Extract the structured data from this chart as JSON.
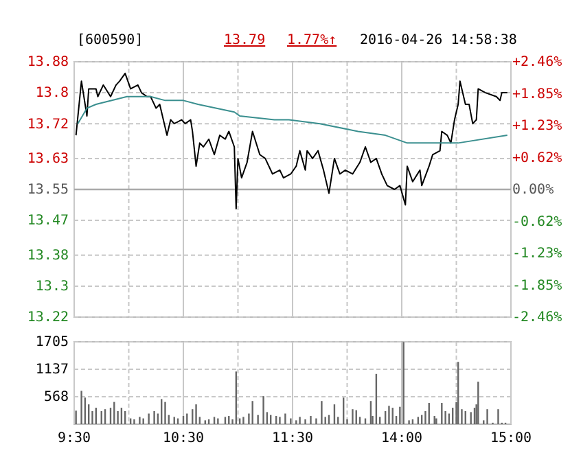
{
  "chart_data": [
    {
      "type": "line",
      "title": "[600590]",
      "annotations": [
        "13.79",
        "1.77%↑",
        "2016-04-26 14:58:38"
      ],
      "categories": [
        null,
        null,
        null,
        null,
        null,
        null,
        null,
        null,
        null,
        null,
        null,
        null,
        null,
        null,
        null,
        null,
        null,
        null,
        null,
        null,
        null,
        null,
        null,
        null,
        null,
        null,
        null,
        null,
        null,
        null,
        null,
        null,
        null,
        null,
        null,
        null,
        null,
        null,
        null,
        null,
        null,
        null,
        null,
        null,
        null,
        null,
        null,
        null,
        null,
        null,
        null,
        null,
        null,
        null,
        null,
        null,
        null,
        null,
        null,
        null,
        null,
        null,
        null,
        null,
        null,
        null,
        null,
        null,
        null,
        null,
        null,
        null,
        null,
        null,
        null,
        null,
        null,
        null,
        null,
        null,
        null,
        null,
        null,
        null,
        null,
        null,
        null,
        null,
        null,
        null,
        null,
        null,
        null,
        null,
        null,
        null,
        null,
        null,
        null,
        null,
        null,
        null,
        null,
        null,
        null,
        null,
        null,
        null,
        null,
        null,
        null,
        null,
        null,
        null,
        null,
        null,
        null,
        null,
        null,
        null,
        null,
        null,
        null,
        null,
        null,
        null,
        null,
        null,
        null,
        null,
        null,
        null,
        null,
        null,
        null,
        null,
        null,
        null,
        null,
        null,
        null,
        null,
        null,
        null,
        null,
        null,
        null,
        null,
        null,
        null,
        null,
        null,
        null,
        null,
        null,
        null,
        null,
        null,
        null,
        null,
        null,
        null,
        null,
        null,
        null,
        null,
        null,
        null,
        null,
        null,
        null,
        null,
        null,
        null,
        null,
        null,
        null,
        null,
        null,
        null,
        null,
        null,
        null,
        null,
        null,
        null,
        null,
        null,
        null,
        null,
        null,
        null,
        null,
        null,
        null,
        null,
        null,
        null,
        null,
        null,
        null,
        null,
        null,
        null,
        null,
        null,
        null,
        null,
        null,
        null,
        null,
        null,
        null,
        null,
        null,
        null,
        null,
        null,
        null,
        null,
        null,
        null,
        null,
        null,
        null,
        null,
        null,
        null,
        null,
        null,
        null,
        null,
        null,
        null,
        null,
        null,
        null,
        null,
        null,
        null,
        null
      ],
      "ylim": [
        13.22,
        13.88
      ],
      "yticks": [
        13.22,
        13.3,
        13.38,
        13.47,
        13.55,
        13.63,
        13.72,
        13.8,
        13.88
      ],
      "y2lim": [
        -2.46,
        2.46
      ],
      "y2ticks": [
        {
          "value": -2.46,
          "label": "-2.46%"
        },
        {
          "value": -1.85,
          "label": "-1.85%"
        },
        {
          "value": -1.23,
          "label": "-1.23%"
        },
        {
          "value": -0.62,
          "label": "-0.62%"
        },
        {
          "value": 0,
          "label": "0.00%"
        },
        {
          "value": 0.62,
          "label": "+0.62%"
        },
        {
          "value": 1.23,
          "label": "+1.23%"
        },
        {
          "value": 1.85,
          "label": "+1.85%"
        },
        {
          "value": 2.46,
          "label": "+2.46%"
        }
      ],
      "tick_labels": "y",
      "grid": true,
      "ref_lines": [
        {
          "axis": "y",
          "value": 13.55
        }
      ],
      "series": [
        {
          "color": "#000000",
          "values": [
            null,
            13.69,
            null,
            null,
            13.83,
            null,
            null,
            13.74,
            13.81,
            null,
            null,
            null,
            13.81,
            13.79,
            null,
            null,
            13.82,
            null,
            null,
            null,
            13.79,
            null,
            null,
            13.82,
            null,
            13.83,
            null,
            null,
            13.85,
            null,
            null,
            13.81,
            null,
            null,
            null,
            13.82,
            null,
            13.8,
            null,
            null,
            13.79,
            null,
            13.79,
            null,
            null,
            13.76,
            null,
            13.77,
            null,
            13.73,
            null,
            13.69,
            null,
            13.73,
            null,
            13.72,
            null,
            null,
            null,
            13.73,
            null,
            13.72,
            null,
            null,
            13.73,
            13.7,
            null,
            13.61,
            null,
            13.67,
            null,
            13.66,
            null,
            null,
            13.68,
            null,
            null,
            13.64,
            null,
            null,
            13.69,
            null,
            null,
            13.68,
            null,
            13.7,
            null,
            null,
            13.66,
            13.5,
            13.63,
            null,
            13.58,
            null,
            null,
            13.62,
            null,
            null,
            13.7,
            null,
            null,
            null,
            13.64,
            null,
            null,
            13.63,
            null,
            null,
            null,
            13.59,
            null,
            null,
            null,
            13.6,
            null,
            13.58,
            null,
            null,
            null,
            13.59,
            null,
            null,
            13.61,
            null,
            13.65,
            null,
            null,
            13.6,
            13.65,
            null,
            null,
            13.63,
            null,
            null,
            13.65,
            null,
            null,
            13.6,
            null,
            null,
            13.54,
            null,
            null,
            13.63,
            null,
            null,
            13.59,
            null,
            null,
            13.6,
            null,
            null,
            null,
            13.59,
            null,
            null,
            null,
            13.62,
            null,
            null,
            13.66,
            null,
            null,
            13.62,
            null,
            null,
            13.63,
            null,
            null,
            13.59,
            null,
            null,
            13.56,
            null,
            null,
            null,
            13.55,
            null,
            null,
            13.56,
            null,
            null,
            13.51,
            13.61,
            null,
            null,
            13.57,
            null,
            null,
            null,
            13.6,
            13.56,
            null,
            null,
            null,
            13.61,
            null,
            13.64,
            null,
            null,
            null,
            13.65,
            13.7,
            null,
            null,
            13.69,
            null,
            13.67,
            null,
            13.73,
            null,
            13.77,
            13.83,
            null,
            null,
            13.77,
            null,
            13.77,
            null,
            13.72,
            null,
            13.73,
            13.81,
            null,
            null,
            null,
            13.8,
            null,
            null,
            null,
            null,
            null,
            13.79,
            null,
            13.78,
            13.8,
            null,
            null,
            13.8,
            null,
            null
          ]
        },
        {
          "color": "#3a8f8f",
          "values": [
            null,
            null,
            13.72,
            null,
            null,
            null,
            null,
            13.76,
            null,
            null,
            null,
            null,
            13.77,
            null,
            null,
            null,
            null,
            null,
            null,
            null,
            null,
            null,
            null,
            null,
            null,
            null,
            null,
            null,
            null,
            13.79,
            null,
            null,
            null,
            null,
            null,
            null,
            null,
            null,
            null,
            null,
            null,
            null,
            13.79,
            null,
            null,
            null,
            null,
            null,
            null,
            null,
            13.78,
            null,
            null,
            null,
            null,
            null,
            null,
            null,
            null,
            null,
            13.78,
            null,
            null,
            null,
            null,
            null,
            null,
            null,
            13.77,
            null,
            null,
            null,
            null,
            null,
            null,
            null,
            null,
            null,
            null,
            null,
            null,
            null,
            null,
            null,
            null,
            null,
            null,
            null,
            13.75,
            null,
            null,
            13.74,
            null,
            null,
            null,
            null,
            null,
            null,
            null,
            null,
            null,
            null,
            null,
            null,
            null,
            null,
            null,
            null,
            null,
            null,
            13.73,
            null,
            null,
            null,
            null,
            null,
            null,
            null,
            13.73,
            null,
            null,
            null,
            null,
            null,
            null,
            null,
            null,
            null,
            null,
            null,
            null,
            null,
            null,
            null,
            null,
            13.72,
            null,
            null,
            null,
            null,
            null,
            null,
            null,
            null,
            null,
            null,
            null,
            null,
            null,
            null,
            null,
            null,
            null,
            null,
            null,
            null,
            13.7,
            null,
            null,
            null,
            null,
            null,
            null,
            null,
            null,
            null,
            null,
            null,
            null,
            null,
            null,
            13.69,
            null,
            null,
            null,
            null,
            null,
            null,
            null,
            null,
            null,
            null,
            null,
            13.67,
            null,
            null,
            null,
            null,
            null,
            null,
            null,
            null,
            null,
            null,
            null,
            null,
            13.67,
            null,
            null,
            null,
            null,
            null,
            null,
            null,
            null,
            null,
            null,
            null,
            null,
            null,
            null,
            13.67,
            null,
            null,
            null,
            null,
            null,
            null,
            null,
            null,
            null,
            null,
            null,
            null,
            null,
            null,
            null,
            null,
            null,
            null,
            null,
            null,
            null,
            null,
            null,
            null,
            null,
            null,
            13.69,
            null,
            null
          ]
        }
      ]
    },
    {
      "type": "bar",
      "color": "#666666",
      "categories": [
        "9:30",
        null,
        null,
        null,
        null,
        null,
        null,
        null,
        null,
        null,
        null,
        null,
        null,
        null,
        null,
        null,
        null,
        null,
        null,
        null,
        null,
        null,
        null,
        null,
        null,
        null,
        null,
        null,
        null,
        null,
        null,
        null,
        null,
        null,
        null,
        null,
        null,
        null,
        null,
        null,
        null,
        null,
        null,
        null,
        null,
        null,
        null,
        null,
        null,
        null,
        null,
        null,
        null,
        null,
        null,
        null,
        null,
        null,
        null,
        null,
        "10:30",
        null,
        null,
        null,
        null,
        null,
        null,
        null,
        null,
        null,
        null,
        null,
        null,
        null,
        null,
        null,
        null,
        null,
        null,
        null,
        null,
        null,
        null,
        null,
        null,
        null,
        null,
        null,
        null,
        null,
        null,
        null,
        null,
        null,
        null,
        null,
        null,
        null,
        null,
        null,
        null,
        null,
        null,
        null,
        null,
        null,
        null,
        null,
        null,
        null,
        null,
        null,
        null,
        null,
        null,
        null,
        null,
        null,
        null,
        null,
        "11:30",
        null,
        null,
        null,
        null,
        null,
        null,
        null,
        null,
        null,
        null,
        null,
        null,
        null,
        null,
        null,
        null,
        null,
        null,
        null,
        null,
        null,
        null,
        null,
        null,
        null,
        null,
        null,
        null,
        null,
        null,
        null,
        null,
        null,
        null,
        null,
        null,
        null,
        null,
        null,
        null,
        null,
        null,
        null,
        null,
        null,
        null,
        null,
        null,
        null,
        null,
        null,
        null,
        null,
        null,
        null,
        null,
        null,
        null,
        null,
        "14:00",
        null,
        null,
        null,
        null,
        null,
        null,
        null,
        null,
        null,
        null,
        null,
        null,
        null,
        null,
        null,
        null,
        null,
        null,
        null,
        null,
        null,
        null,
        null,
        null,
        null,
        null,
        null,
        null,
        null,
        null,
        null,
        null,
        null,
        null,
        null,
        null,
        null,
        null,
        null,
        null,
        null,
        null,
        null,
        null,
        null,
        null,
        null,
        null,
        null,
        null,
        null,
        null,
        null,
        null,
        null,
        null,
        null,
        null,
        null,
        "15:00"
      ],
      "ylim": [
        0,
        1705
      ],
      "yticks": [
        568,
        1137,
        1705
      ],
      "grid": true,
      "values": [
        null,
        280,
        null,
        null,
        690,
        null,
        550,
        null,
        410,
        null,
        270,
        null,
        340,
        null,
        null,
        270,
        null,
        310,
        null,
        null,
        340,
        null,
        460,
        null,
        270,
        null,
        340,
        null,
        270,
        null,
        null,
        120,
        null,
        100,
        null,
        null,
        150,
        null,
        120,
        null,
        null,
        220,
        null,
        null,
        270,
        null,
        220,
        null,
        520,
        null,
        460,
        null,
        190,
        null,
        null,
        150,
        null,
        120,
        null,
        null,
        170,
        null,
        220,
        null,
        null,
        310,
        null,
        410,
        null,
        150,
        null,
        null,
        80,
        null,
        100,
        null,
        null,
        150,
        null,
        120,
        null,
        null,
        null,
        150,
        null,
        170,
        null,
        100,
        null,
        1090,
        null,
        120,
        null,
        150,
        null,
        null,
        220,
        null,
        480,
        null,
        null,
        190,
        null,
        null,
        580,
        null,
        250,
        null,
        190,
        null,
        null,
        170,
        null,
        150,
        null,
        null,
        220,
        null,
        null,
        120,
        null,
        null,
        80,
        null,
        150,
        null,
        null,
        100,
        null,
        null,
        170,
        null,
        null,
        120,
        null,
        null,
        480,
        null,
        150,
        null,
        190,
        null,
        null,
        410,
        null,
        150,
        null,
        null,
        550,
        null,
        100,
        null,
        null,
        310,
        null,
        290,
        null,
        150,
        null,
        null,
        120,
        null,
        null,
        480,
        170,
        null,
        1040,
        null,
        150,
        null,
        null,
        270,
        null,
        380,
        null,
        340,
        null,
        170,
        null,
        360,
        null,
        1700,
        null,
        null,
        80,
        null,
        100,
        null,
        null,
        150,
        null,
        190,
        null,
        270,
        null,
        440,
        null,
        null,
        170,
        120,
        null,
        null,
        440,
        null,
        270,
        null,
        220,
        null,
        340,
        null,
        460,
        1290,
        null,
        310,
        null,
        270,
        null,
        null,
        250,
        null,
        340,
        410,
        880,
        null,
        null,
        80,
        null,
        310,
        null,
        null,
        30,
        null,
        null,
        310,
        null,
        30,
        null,
        30,
        null,
        null,
        null
      ]
    }
  ]
}
